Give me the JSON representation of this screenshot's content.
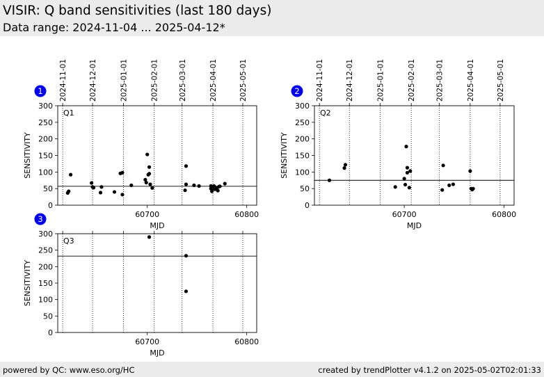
{
  "header": {
    "title": "VISIR: Q band sensitivities (last 180 days)",
    "subtitle": "Data range: 2024-11-04 ... 2025-04-12*"
  },
  "footer": {
    "left": "powered by QC: www.eso.org/HC",
    "right": "created by trendPlotter v4.1.2 on 2025-05-02T02:01:33"
  },
  "colors": {
    "badge": "#0000ee",
    "points": "#000000",
    "header_bg": "#ececec"
  },
  "chart_data": [
    {
      "type": "scatter",
      "panel": "1",
      "label": "Q1",
      "xlabel": "MJD",
      "ylabel": "SENSITIVITY",
      "xlim": [
        60610,
        60810
      ],
      "ylim": [
        0,
        300
      ],
      "x_ticks": [
        60700,
        60800
      ],
      "y_ticks": [
        0,
        50,
        100,
        150,
        200,
        250,
        300
      ],
      "date_ticks": [
        {
          "label": "2024-11-01",
          "mjd": 60615
        },
        {
          "label": "2024-12-01",
          "mjd": 60645
        },
        {
          "label": "2025-01-01",
          "mjd": 60676
        },
        {
          "label": "2025-02-01",
          "mjd": 60707
        },
        {
          "label": "2025-03-01",
          "mjd": 60735
        },
        {
          "label": "2025-04-01",
          "mjd": 60766
        },
        {
          "label": "2025-05-01",
          "mjd": 60796
        }
      ],
      "reference_line": 57,
      "points": [
        [
          60620,
          37
        ],
        [
          60621,
          42
        ],
        [
          60623,
          92
        ],
        [
          60644,
          67
        ],
        [
          60645,
          55
        ],
        [
          60646,
          53
        ],
        [
          60653,
          38
        ],
        [
          60654,
          55
        ],
        [
          60667,
          40
        ],
        [
          60673,
          96
        ],
        [
          60675,
          98
        ],
        [
          60675,
          32
        ],
        [
          60684,
          60
        ],
        [
          60698,
          77
        ],
        [
          60699,
          68
        ],
        [
          60700,
          153
        ],
        [
          60701,
          92
        ],
        [
          60702,
          115
        ],
        [
          60702,
          95
        ],
        [
          60703,
          63
        ],
        [
          60705,
          52
        ],
        [
          60738,
          45
        ],
        [
          60739,
          118
        ],
        [
          60739,
          63
        ],
        [
          60747,
          60
        ],
        [
          60752,
          58
        ],
        [
          60764,
          58
        ],
        [
          60764,
          50
        ],
        [
          60765,
          42
        ],
        [
          60766,
          53
        ],
        [
          60767,
          58
        ],
        [
          60768,
          48
        ],
        [
          60768,
          55
        ],
        [
          60770,
          52
        ],
        [
          60771,
          44
        ],
        [
          60772,
          56
        ],
        [
          60773,
          57
        ],
        [
          60778,
          65
        ]
      ]
    },
    {
      "type": "scatter",
      "panel": "2",
      "label": "Q2",
      "xlabel": "MJD",
      "ylabel": "SENSITIVITY",
      "xlim": [
        60610,
        60810
      ],
      "ylim": [
        0,
        300
      ],
      "x_ticks": [
        60700,
        60800
      ],
      "y_ticks": [
        0,
        50,
        100,
        150,
        200,
        250,
        300
      ],
      "date_ticks": [
        {
          "label": "2024-11-01",
          "mjd": 60615
        },
        {
          "label": "2024-12-01",
          "mjd": 60645
        },
        {
          "label": "2025-01-01",
          "mjd": 60676
        },
        {
          "label": "2025-02-01",
          "mjd": 60707
        },
        {
          "label": "2025-03-01",
          "mjd": 60735
        },
        {
          "label": "2025-04-01",
          "mjd": 60766
        },
        {
          "label": "2025-05-01",
          "mjd": 60796
        }
      ],
      "reference_line": 75,
      "points": [
        [
          60625,
          75
        ],
        [
          60640,
          112
        ],
        [
          60641,
          122
        ],
        [
          60691,
          55
        ],
        [
          60700,
          80
        ],
        [
          60701,
          62
        ],
        [
          60702,
          177
        ],
        [
          60703,
          113
        ],
        [
          60703,
          98
        ],
        [
          60705,
          53
        ],
        [
          60706,
          103
        ],
        [
          60738,
          46
        ],
        [
          60739,
          120
        ],
        [
          60745,
          60
        ],
        [
          60749,
          63
        ],
        [
          60766,
          103
        ],
        [
          60767,
          50
        ],
        [
          60768,
          47
        ],
        [
          60769,
          50
        ]
      ]
    },
    {
      "type": "scatter",
      "panel": "3",
      "label": "Q3",
      "xlabel": "MJD",
      "ylabel": "SENSITIVITY",
      "xlim": [
        60610,
        60810
      ],
      "ylim": [
        0,
        300
      ],
      "x_ticks": [
        60700,
        60800
      ],
      "y_ticks": [
        0,
        50,
        100,
        150,
        200,
        250,
        300
      ],
      "date_ticks": [
        {
          "label": "2024-11-01",
          "mjd": 60615
        },
        {
          "label": "2024-12-01",
          "mjd": 60645
        },
        {
          "label": "2025-01-01",
          "mjd": 60676
        },
        {
          "label": "2025-02-01",
          "mjd": 60707
        },
        {
          "label": "2025-03-01",
          "mjd": 60735
        },
        {
          "label": "2025-04-01",
          "mjd": 60766
        },
        {
          "label": "2025-05-01",
          "mjd": 60796
        }
      ],
      "show_date_labels": false,
      "reference_line": 232,
      "points": [
        [
          60702,
          290
        ],
        [
          60739,
          233
        ],
        [
          60739,
          125
        ]
      ]
    }
  ]
}
